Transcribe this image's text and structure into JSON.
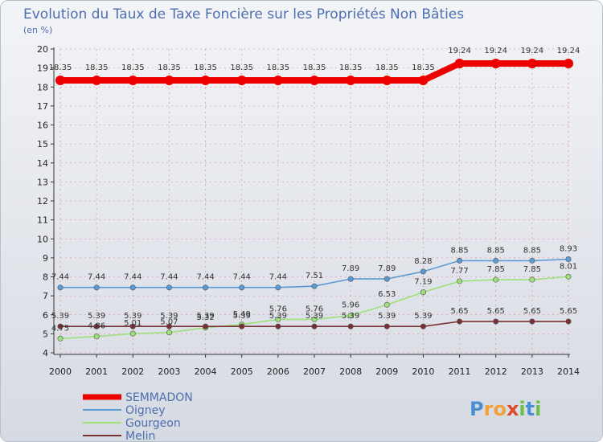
{
  "chart_data": {
    "type": "line",
    "title": "Evolution du Taux de Taxe Foncière sur les Propriétés Non Bâties",
    "subtitle": "(en %)",
    "xlabel": "",
    "ylabel": "",
    "ylim": [
      4,
      20
    ],
    "yticks": [
      "4",
      "5",
      "6",
      "7",
      "8",
      "9",
      "10",
      "11",
      "12",
      "13",
      "14",
      "15",
      "16",
      "17",
      "18",
      "19",
      "20"
    ],
    "categories": [
      "2000",
      "2001",
      "2002",
      "2003",
      "2004",
      "2005",
      "2006",
      "2007",
      "2008",
      "2009",
      "2010",
      "2011",
      "2012",
      "2013",
      "2014"
    ],
    "series": [
      {
        "name": "SEMMADON",
        "color": "#ee0000",
        "values": [
          18.35,
          18.35,
          18.35,
          18.35,
          18.35,
          18.35,
          18.35,
          18.35,
          18.35,
          18.35,
          18.35,
          19.24,
          19.24,
          19.24,
          19.24
        ],
        "labels": [
          "18.35",
          "18.35",
          "18.35",
          "18.35",
          "18.35",
          "18.35",
          "18.35",
          "18.35",
          "18.35",
          "18.35",
          "18.35",
          "19.24",
          "19.24",
          "19.24",
          "19.24"
        ]
      },
      {
        "name": "Oigney",
        "color": "#5b9bd5",
        "values": [
          7.44,
          7.44,
          7.44,
          7.44,
          7.44,
          7.44,
          7.44,
          7.51,
          7.89,
          7.89,
          8.28,
          8.85,
          8.85,
          8.85,
          8.93
        ],
        "labels": [
          "7.44",
          "7.44",
          "7.44",
          "7.44",
          "7.44",
          "7.44",
          "7.44",
          "7.51",
          "7.89",
          "7.89",
          "8.28",
          "8.85",
          "8.85",
          "8.85",
          "8.93"
        ]
      },
      {
        "name": "Gourgeon",
        "color": "#9ee07a",
        "values": [
          4.75,
          4.86,
          5.01,
          5.07,
          5.32,
          5.49,
          5.76,
          5.76,
          5.96,
          6.53,
          7.19,
          7.77,
          7.85,
          7.85,
          8.01
        ],
        "labels": [
          "4.75",
          "4.86",
          "5.01",
          "5.07",
          "5.32",
          "5.49",
          "5.76",
          "5.76",
          "5.96",
          "6.53",
          "7.19",
          "7.77",
          "7.85",
          "7.85",
          "8.01"
        ]
      },
      {
        "name": "Melin",
        "color": "#7a2f35",
        "values": [
          5.39,
          5.39,
          5.39,
          5.39,
          5.39,
          5.39,
          5.39,
          5.39,
          5.39,
          5.39,
          5.39,
          5.65,
          5.65,
          5.65,
          5.65
        ],
        "labels": [
          "5.39",
          "5.39",
          "5.39",
          "5.39",
          "5.39",
          "5.39",
          "5.39",
          "5.39",
          "5.39",
          "5.39",
          "5.39",
          "5.65",
          "5.65",
          "5.65",
          "5.65"
        ]
      }
    ],
    "legend_position": "bottom-left"
  },
  "logo": {
    "text": "Proxiti",
    "letters": [
      "P",
      "r",
      "o",
      "x",
      "i",
      "t",
      "i"
    ]
  }
}
